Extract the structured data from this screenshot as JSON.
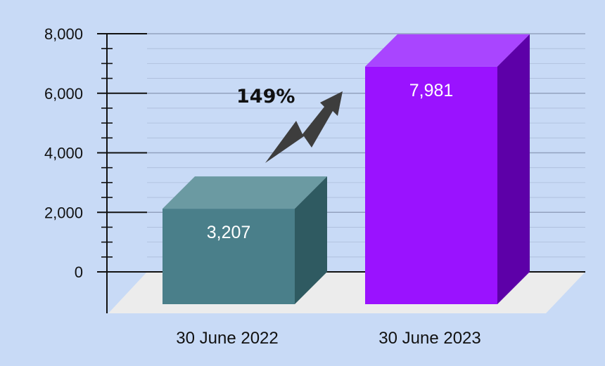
{
  "chart_data": {
    "type": "bar",
    "style": "3d",
    "categories": [
      "30 June 2022",
      "30 June 2023"
    ],
    "values": [
      3207,
      7981
    ],
    "value_labels": [
      "3,207",
      "7,981"
    ],
    "ylim": [
      0,
      8000
    ],
    "yticks": [
      0,
      2000,
      4000,
      6000,
      8000
    ],
    "ytick_labels": [
      "0",
      "2,000",
      "4,000",
      "6,000",
      "8,000"
    ],
    "grid": true,
    "annotation": {
      "text": "149%",
      "icon": "upward-zigzag-arrow-icon"
    },
    "colors": {
      "background": "#c8daf6",
      "floor": "#ececec",
      "gridline": "#8c9ab8",
      "axis": "#111111",
      "arrow": "#3d3d3d",
      "bars": [
        {
          "front": "#4a7f8a",
          "top": "#6b9aa2",
          "side": "#2f5a61"
        },
        {
          "front": "#9a12ff",
          "top": "#a945ff",
          "side": "#5d00a8"
        }
      ]
    }
  }
}
